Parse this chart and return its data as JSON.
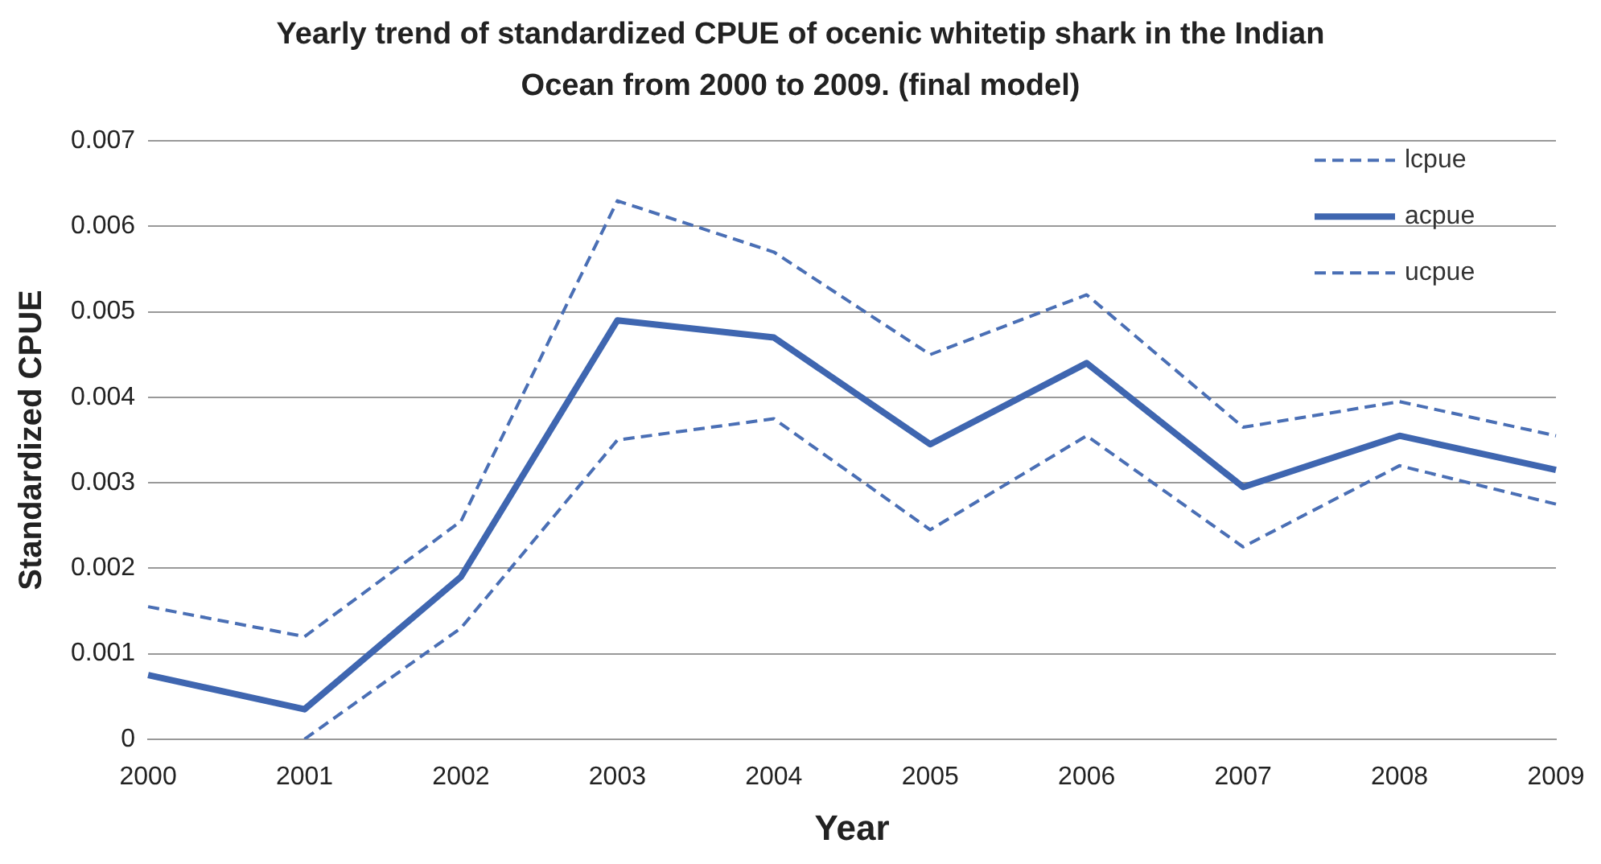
{
  "chart_data": {
    "type": "line",
    "title": "Yearly trend of standardized CPUE of ocenic whitetip shark in the Indian Ocean from 2000 to 2009. (final model)",
    "xlabel": "Year",
    "ylabel": "Standardized CPUE",
    "categories": [
      "2000",
      "2001",
      "2002",
      "2003",
      "2004",
      "2005",
      "2006",
      "2007",
      "2008",
      "2009"
    ],
    "series": [
      {
        "name": "lcpue",
        "color": "#4a6fb5",
        "line_style": "dashed",
        "values": [
          0.00155,
          0.0012,
          0.00255,
          0.0063,
          0.0057,
          0.0045,
          0.0052,
          0.00365,
          0.00395,
          0.00355
        ]
      },
      {
        "name": "acpue",
        "color": "#3f66b0",
        "line_style": "solid",
        "values": [
          0.00075,
          0.00035,
          0.0019,
          0.0049,
          0.0047,
          0.00345,
          0.0044,
          0.00295,
          0.00355,
          0.00315
        ]
      },
      {
        "name": "ucpue",
        "color": "#4a6fb5",
        "line_style": "dashed",
        "values": [
          null,
          0,
          0.0013,
          0.0035,
          0.00375,
          0.00245,
          0.00355,
          0.00225,
          0.0032,
          0.00275
        ]
      }
    ],
    "ylim": [
      0,
      0.007
    ],
    "yticks": [
      {
        "value": 0,
        "label": "0"
      },
      {
        "value": 0.001,
        "label": "0.001"
      },
      {
        "value": 0.002,
        "label": "0.002"
      },
      {
        "value": 0.003,
        "label": "0.003"
      },
      {
        "value": 0.004,
        "label": "0.004"
      },
      {
        "value": 0.005,
        "label": "0.005"
      },
      {
        "value": 0.006,
        "label": "0.006"
      },
      {
        "value": 0.007,
        "label": "0.007"
      }
    ],
    "grid": "y",
    "legend": "top right",
    "marker": "none"
  }
}
